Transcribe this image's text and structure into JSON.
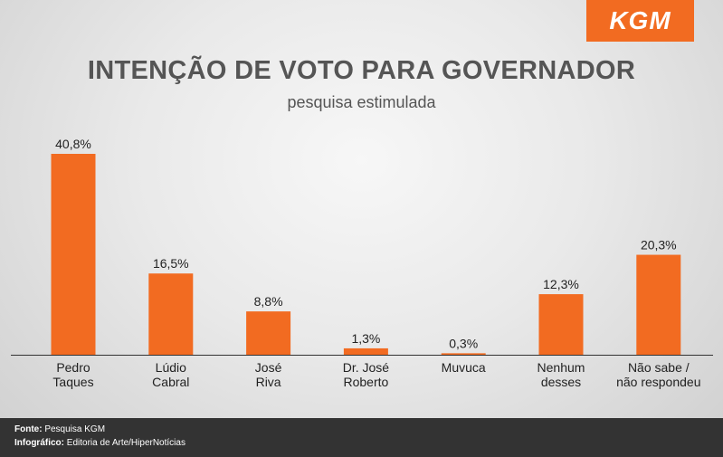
{
  "brand": {
    "logo_text": "KGM",
    "accent": "#f26b21"
  },
  "footer": {
    "source_label": "Fonte:",
    "source_value": "Pesquisa KGM",
    "credit_label": "Infográfico:",
    "credit_value": "Editoria de Arte/HiperNotícias"
  },
  "chart_data": {
    "type": "bar",
    "title": "INTENÇÃO DE VOTO PARA GOVERNADOR",
    "subtitle": "pesquisa estimulada",
    "categories": [
      [
        "Pedro",
        "Taques"
      ],
      [
        "Lúdio",
        "Cabral"
      ],
      [
        "José",
        "Riva"
      ],
      [
        "Dr. José",
        "Roberto"
      ],
      [
        "Muvuca"
      ],
      [
        "Nenhum",
        "desses"
      ],
      [
        "Não sabe /",
        "não respondeu"
      ]
    ],
    "values": [
      40.8,
      16.5,
      8.8,
      1.3,
      0.3,
      12.3,
      20.3
    ],
    "value_labels": [
      "40,8%",
      "16,5%",
      "8,8%",
      "1,3%",
      "0,3%",
      "12,3%",
      "20,3%"
    ],
    "bar_color": "#f26b21",
    "grid": false,
    "legend": false
  }
}
